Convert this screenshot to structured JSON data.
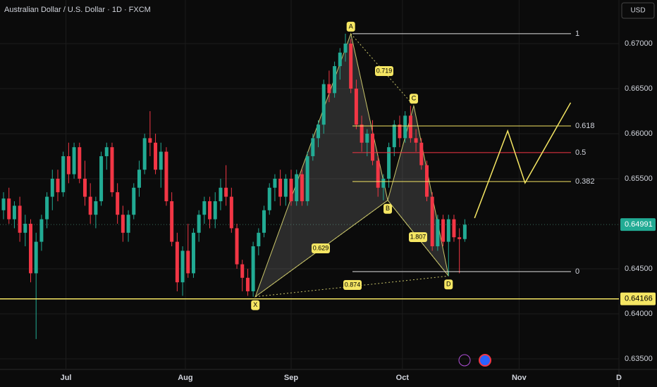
{
  "chart_data": {
    "type": "candlestick",
    "title": "Australian Dollar / U.S. Dollar · 1D · FXCM",
    "currency": "USD",
    "up_color": "#22ab94",
    "down_color": "#f23645",
    "xlim": [
      -0.65,
      113.4
    ],
    "xticks": [
      {
        "value": 11.5,
        "label": "Jul"
      },
      {
        "value": 33.5,
        "label": "Aug"
      },
      {
        "value": 53,
        "label": "Sep"
      },
      {
        "value": 73.5,
        "label": "Oct"
      },
      {
        "value": 95,
        "label": "Nov"
      },
      {
        "value": 113.4,
        "label": "D"
      }
    ],
    "ylim": [
      0.63383,
      0.67484
    ],
    "yticks": [
      {
        "value": 0.67,
        "label": "0.67000"
      },
      {
        "value": 0.665,
        "label": "0.66500"
      },
      {
        "value": 0.66,
        "label": "0.66000"
      },
      {
        "value": 0.655,
        "label": "0.65500"
      },
      {
        "value": 0.645,
        "label": "0.64500"
      },
      {
        "value": 0.64,
        "label": "0.64000"
      },
      {
        "value": 0.635,
        "label": "0.63500"
      }
    ],
    "grid": true,
    "current_price": 0.64991,
    "support_level": 0.64166,
    "candles": [
      [
        0.6515,
        0.6535,
        0.6505,
        0.6528
      ],
      [
        0.6528,
        0.654,
        0.65,
        0.6505
      ],
      [
        0.6505,
        0.6525,
        0.6495,
        0.652
      ],
      [
        0.652,
        0.653,
        0.648,
        0.649
      ],
      [
        0.649,
        0.651,
        0.6475,
        0.65
      ],
      [
        0.65,
        0.6505,
        0.6435,
        0.6445
      ],
      [
        0.6445,
        0.649,
        0.6372,
        0.648
      ],
      [
        0.648,
        0.651,
        0.647,
        0.6505
      ],
      [
        0.6505,
        0.6535,
        0.6495,
        0.653
      ],
      [
        0.653,
        0.656,
        0.6515,
        0.655
      ],
      [
        0.655,
        0.656,
        0.6525,
        0.6535
      ],
      [
        0.6535,
        0.658,
        0.653,
        0.6575
      ],
      [
        0.6575,
        0.659,
        0.6545,
        0.6555
      ],
      [
        0.6555,
        0.659,
        0.655,
        0.6585
      ],
      [
        0.6585,
        0.659,
        0.6545,
        0.655
      ],
      [
        0.655,
        0.657,
        0.652,
        0.653
      ],
      [
        0.653,
        0.6545,
        0.65,
        0.651
      ],
      [
        0.651,
        0.653,
        0.6495,
        0.6525
      ],
      [
        0.6525,
        0.658,
        0.652,
        0.6575
      ],
      [
        0.6575,
        0.659,
        0.656,
        0.6585
      ],
      [
        0.6585,
        0.659,
        0.653,
        0.6535
      ],
      [
        0.6535,
        0.6545,
        0.65,
        0.651
      ],
      [
        0.651,
        0.652,
        0.648,
        0.649
      ],
      [
        0.649,
        0.6515,
        0.648,
        0.651
      ],
      [
        0.651,
        0.6545,
        0.6505,
        0.654
      ],
      [
        0.654,
        0.657,
        0.653,
        0.656
      ],
      [
        0.656,
        0.66,
        0.6555,
        0.6595
      ],
      [
        0.6595,
        0.6625,
        0.6575,
        0.659
      ],
      [
        0.659,
        0.66,
        0.6555,
        0.656
      ],
      [
        0.656,
        0.659,
        0.654,
        0.658
      ],
      [
        0.658,
        0.6585,
        0.652,
        0.6525
      ],
      [
        0.6525,
        0.6535,
        0.6475,
        0.648
      ],
      [
        0.648,
        0.649,
        0.6425,
        0.6435
      ],
      [
        0.6435,
        0.6475,
        0.642,
        0.647
      ],
      [
        0.647,
        0.65,
        0.644,
        0.6445
      ],
      [
        0.6445,
        0.6495,
        0.644,
        0.649
      ],
      [
        0.649,
        0.6515,
        0.648,
        0.651
      ],
      [
        0.651,
        0.653,
        0.65,
        0.6525
      ],
      [
        0.6525,
        0.653,
        0.6495,
        0.6505
      ],
      [
        0.6505,
        0.6535,
        0.6495,
        0.6525
      ],
      [
        0.6525,
        0.655,
        0.6515,
        0.654
      ],
      [
        0.654,
        0.6565,
        0.652,
        0.653
      ],
      [
        0.653,
        0.654,
        0.649,
        0.6495
      ],
      [
        0.6495,
        0.65,
        0.645,
        0.6455
      ],
      [
        0.6455,
        0.646,
        0.6425,
        0.644
      ],
      [
        0.644,
        0.645,
        0.642,
        0.6425
      ],
      [
        0.6425,
        0.648,
        0.6419,
        0.6475
      ],
      [
        0.6475,
        0.6495,
        0.6465,
        0.649
      ],
      [
        0.649,
        0.652,
        0.6485,
        0.6515
      ],
      [
        0.6515,
        0.6545,
        0.651,
        0.654
      ],
      [
        0.654,
        0.6555,
        0.6525,
        0.655
      ],
      [
        0.655,
        0.656,
        0.652,
        0.653
      ],
      [
        0.653,
        0.6555,
        0.652,
        0.655
      ],
      [
        0.655,
        0.656,
        0.652,
        0.6525
      ],
      [
        0.6525,
        0.656,
        0.652,
        0.6555
      ],
      [
        0.6555,
        0.656,
        0.652,
        0.6525
      ],
      [
        0.6525,
        0.658,
        0.652,
        0.6575
      ],
      [
        0.6575,
        0.66,
        0.657,
        0.6595
      ],
      [
        0.6595,
        0.6615,
        0.6585,
        0.661
      ],
      [
        0.661,
        0.666,
        0.66,
        0.6655
      ],
      [
        0.6655,
        0.667,
        0.6635,
        0.6645
      ],
      [
        0.6645,
        0.668,
        0.664,
        0.6675
      ],
      [
        0.6675,
        0.6695,
        0.666,
        0.669
      ],
      [
        0.669,
        0.6711,
        0.668,
        0.67
      ],
      [
        0.67,
        0.6705,
        0.6645,
        0.665
      ],
      [
        0.665,
        0.666,
        0.6605,
        0.661
      ],
      [
        0.661,
        0.662,
        0.658,
        0.659
      ],
      [
        0.659,
        0.6605,
        0.6575,
        0.66
      ],
      [
        0.66,
        0.6615,
        0.6565,
        0.657
      ],
      [
        0.657,
        0.6575,
        0.653,
        0.654
      ],
      [
        0.654,
        0.6555,
        0.6526,
        0.655
      ],
      [
        0.655,
        0.659,
        0.654,
        0.6585
      ],
      [
        0.6585,
        0.6615,
        0.6575,
        0.661
      ],
      [
        0.661,
        0.662,
        0.6585,
        0.6595
      ],
      [
        0.6595,
        0.6625,
        0.659,
        0.662
      ],
      [
        0.662,
        0.6631,
        0.659,
        0.6595
      ],
      [
        0.6595,
        0.6605,
        0.658,
        0.659
      ],
      [
        0.659,
        0.6595,
        0.656,
        0.6565
      ],
      [
        0.6565,
        0.657,
        0.6525,
        0.653
      ],
      [
        0.653,
        0.6535,
        0.647,
        0.6475
      ],
      [
        0.6475,
        0.651,
        0.647,
        0.6505
      ],
      [
        0.6505,
        0.651,
        0.6475,
        0.648
      ],
      [
        0.648,
        0.651,
        0.6442,
        0.6505
      ],
      [
        0.6505,
        0.651,
        0.648,
        0.6485
      ],
      [
        0.6485,
        0.6495,
        0.6445,
        0.6483
      ],
      [
        0.6483,
        0.6505,
        0.648,
        0.6499
      ]
    ],
    "pattern_points": [
      {
        "label": "X",
        "x": 46.4,
        "price": 0.6419
      },
      {
        "label": "A",
        "x": 64,
        "price": 0.6711
      },
      {
        "label": "B",
        "x": 70.8,
        "price": 0.6526
      },
      {
        "label": "C",
        "x": 75.6,
        "price": 0.6631
      },
      {
        "label": "D",
        "x": 82,
        "price": 0.6442
      }
    ],
    "pattern_ratios": [
      0.719,
      0.629,
      0.874,
      1.807
    ],
    "fib_levels": [
      {
        "ratio": 1,
        "price": 0.6711,
        "color": "#e0e0e0"
      },
      {
        "ratio": 0.618,
        "price": 0.66086,
        "color": "#f5e663"
      },
      {
        "ratio": 0.5,
        "price": 0.6579,
        "color": "#f23645"
      },
      {
        "ratio": 0.382,
        "price": 0.65469,
        "color": "#f5e663"
      },
      {
        "ratio": 0,
        "price": 0.64469,
        "color": "#e0e0e0"
      }
    ],
    "projection": {
      "x": [
        86.8,
        92.9,
        96.1,
        104.5
      ],
      "price": [
        0.65063,
        0.66031,
        0.65453,
        0.66344
      ]
    }
  }
}
